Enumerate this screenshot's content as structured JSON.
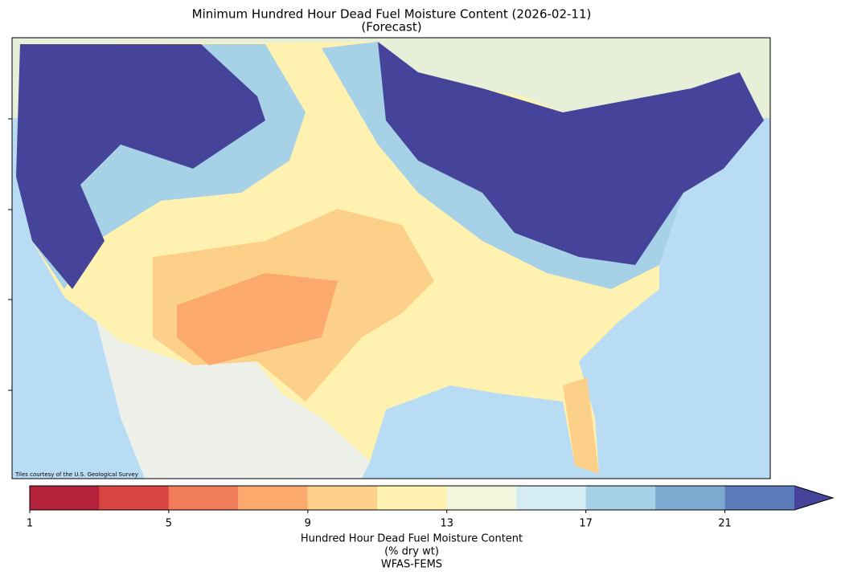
{
  "title": "Minimum Hundred Hour Dead Fuel Moisture Content (2026-02-11)",
  "subtitle": "(Forecast)",
  "attribution": "Tiles courtesy of the U.S. Geological Survey",
  "colorbar": {
    "boundaries": [
      1,
      3,
      5,
      7,
      9,
      11,
      13,
      15,
      17,
      19,
      21,
      23
    ],
    "colors": [
      "#b5223c",
      "#d6453f",
      "#f17c5a",
      "#fba96c",
      "#fdd08a",
      "#fff2b1",
      "#f1f8de",
      "#d5ecf3",
      "#a7d1e6",
      "#7ca9cf",
      "#5b7bbb"
    ],
    "extend_color": "#46449a",
    "ticks": [
      1,
      5,
      9,
      13,
      17,
      21
    ],
    "label": [
      "Hundred Hour Dead Fuel Moisture Content",
      "(% dry wt)",
      "WFAS-FEMS"
    ]
  }
}
